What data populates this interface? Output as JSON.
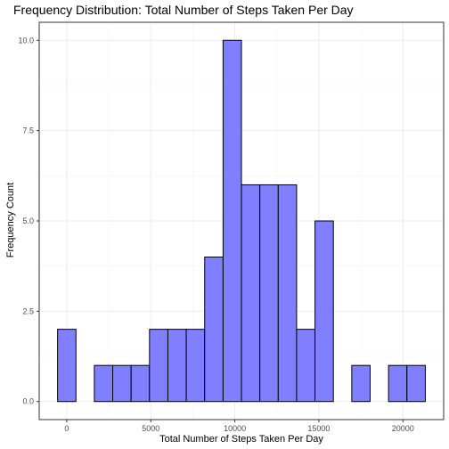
{
  "colors": {
    "bar_fill": "#7f7fff",
    "bar_stroke": "#000000",
    "grid_major": "#ebebeb",
    "grid_minor": "#f5f5f5",
    "panel_border": "#333333"
  },
  "chart_data": {
    "type": "bar",
    "title": "Frequency Distribution: Total Number of Steps Taken Per Day",
    "xlabel": "Total Number of Steps Taken Per Day",
    "ylabel": "Frequency Count",
    "bin_width": 1094,
    "bins": [
      {
        "start": -547,
        "end": 547,
        "count": 2
      },
      {
        "start": 547,
        "end": 1641,
        "count": 0
      },
      {
        "start": 1641,
        "end": 2735,
        "count": 1
      },
      {
        "start": 2735,
        "end": 3829,
        "count": 1
      },
      {
        "start": 3829,
        "end": 4923,
        "count": 1
      },
      {
        "start": 4923,
        "end": 6017,
        "count": 2
      },
      {
        "start": 6017,
        "end": 7111,
        "count": 2
      },
      {
        "start": 7111,
        "end": 8205,
        "count": 2
      },
      {
        "start": 8205,
        "end": 9299,
        "count": 4
      },
      {
        "start": 9299,
        "end": 10393,
        "count": 10
      },
      {
        "start": 10393,
        "end": 11487,
        "count": 6
      },
      {
        "start": 11487,
        "end": 12581,
        "count": 6
      },
      {
        "start": 12581,
        "end": 13675,
        "count": 6
      },
      {
        "start": 13675,
        "end": 14769,
        "count": 2
      },
      {
        "start": 14769,
        "end": 15863,
        "count": 5
      },
      {
        "start": 15863,
        "end": 16957,
        "count": 0
      },
      {
        "start": 16957,
        "end": 18051,
        "count": 1
      },
      {
        "start": 18051,
        "end": 19145,
        "count": 0
      },
      {
        "start": 19145,
        "end": 20239,
        "count": 1
      },
      {
        "start": 20239,
        "end": 21333,
        "count": 1
      }
    ],
    "x_ticks": [
      {
        "value": 0,
        "label": "0"
      },
      {
        "value": 5000,
        "label": "5000"
      },
      {
        "value": 10000,
        "label": "10000"
      },
      {
        "value": 15000,
        "label": "15000"
      },
      {
        "value": 20000,
        "label": "20000"
      }
    ],
    "y_ticks": [
      {
        "value": 0,
        "label": "0.0"
      },
      {
        "value": 2.5,
        "label": "2.5"
      },
      {
        "value": 5,
        "label": "5.0"
      },
      {
        "value": 7.5,
        "label": "7.5"
      },
      {
        "value": 10,
        "label": "10.0"
      }
    ],
    "xlim": [
      -1640,
      22424
    ],
    "ylim": [
      -0.5,
      10.5
    ],
    "grid": true,
    "legend": "none"
  }
}
